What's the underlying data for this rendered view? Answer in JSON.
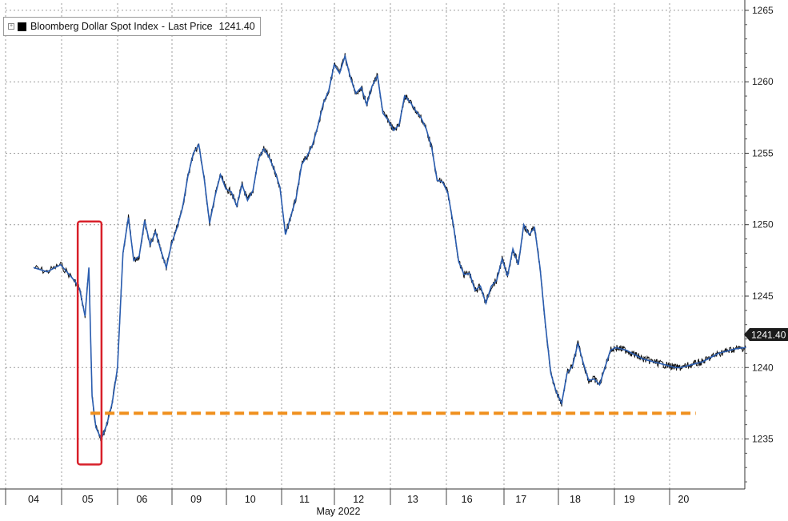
{
  "chart_data": {
    "type": "line",
    "legend": {
      "series_name": "Bloomberg Dollar Spot Index",
      "separator": "-",
      "label": "Last Price",
      "value": "1241.40",
      "placement": "top-left"
    },
    "last_price_tag": "1241.40",
    "x_tick_labels": [
      "04",
      "05",
      "06",
      "09",
      "10",
      "11",
      "12",
      "13",
      "16",
      "17",
      "18",
      "19",
      "20"
    ],
    "xlabel": "May 2022",
    "y_tick_labels": [
      "1235",
      "1240",
      "1245",
      "1250",
      "1255",
      "1260",
      "1265"
    ],
    "ylim": [
      1231.5,
      1265.5
    ],
    "grid": true,
    "series": [
      {
        "color": "#2a5db0",
        "x": [
          0,
          0.25,
          0.5,
          0.75,
          0.85,
          0.95,
          1.02,
          1.08,
          1.15,
          1.25,
          1.35,
          1.45,
          1.55,
          1.6,
          1.65,
          1.75,
          1.85,
          1.95,
          2.05,
          2.15,
          2.25,
          2.35,
          2.45,
          2.55,
          2.65,
          2.75,
          2.85,
          2.95,
          3.05,
          3.15,
          3.25,
          3.35,
          3.45,
          3.55,
          3.65,
          3.75,
          3.85,
          3.95,
          4.05,
          4.15,
          4.25,
          4.35,
          4.45,
          4.55,
          4.65,
          4.75,
          4.85,
          4.95,
          5.05,
          5.15,
          5.25,
          5.35,
          5.45,
          5.55,
          5.65,
          5.75,
          5.85,
          5.95,
          6.05,
          6.15,
          6.25,
          6.35,
          6.45,
          6.55,
          6.65,
          6.75,
          6.85,
          6.95,
          7.05,
          7.15,
          7.25,
          7.35,
          7.45,
          7.55,
          7.65,
          7.75,
          7.85,
          7.95,
          8.05,
          8.15,
          8.25,
          8.35,
          8.45,
          8.55,
          8.65,
          8.75,
          8.85,
          8.95,
          9.05,
          9.15,
          9.25,
          9.35,
          9.45,
          9.55,
          9.65,
          9.75,
          9.85,
          9.95,
          10.05,
          10.15,
          10.25,
          10.35,
          10.45,
          10.55,
          10.65,
          10.75,
          10.85,
          10.95,
          11.05,
          11.15,
          11.25,
          11.35,
          11.45,
          11.55,
          11.65,
          11.75,
          11.85,
          11.95,
          12.05,
          12.15,
          12.25,
          12.35,
          12.45,
          12.55,
          12.65,
          12.75,
          12.85,
          12.95,
          13.05,
          13.15
        ],
        "values": [
          1247.0,
          1246.7,
          1247.2,
          1246.1,
          1245.5,
          1243.6,
          1247.0,
          1238.0,
          1235.8,
          1235.0,
          1236.0,
          1237.5,
          1240.0,
          1244.0,
          1248.0,
          1250.5,
          1247.5,
          1247.8,
          1250.3,
          1248.6,
          1249.5,
          1248.2,
          1247.0,
          1248.7,
          1249.8,
          1251.2,
          1253.4,
          1255.0,
          1255.6,
          1253.2,
          1250.1,
          1252.0,
          1253.5,
          1252.5,
          1252.3,
          1251.3,
          1252.8,
          1251.7,
          1252.4,
          1254.6,
          1255.3,
          1254.7,
          1253.8,
          1252.6,
          1249.3,
          1250.6,
          1251.9,
          1254.2,
          1254.8,
          1255.6,
          1256.9,
          1258.5,
          1259.4,
          1261.2,
          1260.6,
          1261.8,
          1260.3,
          1259.2,
          1259.6,
          1258.4,
          1259.7,
          1260.4,
          1257.8,
          1257.3,
          1256.6,
          1257.0,
          1259.0,
          1258.6,
          1258.0,
          1257.5,
          1256.7,
          1255.4,
          1253.1,
          1253.0,
          1252.2,
          1250.0,
          1247.4,
          1246.5,
          1246.6,
          1245.4,
          1245.7,
          1244.5,
          1245.7,
          1246.1,
          1247.6,
          1246.4,
          1248.3,
          1247.2,
          1250.0,
          1249.3,
          1249.8,
          1247.0,
          1243.0,
          1239.6,
          1238.3,
          1237.5,
          1239.6,
          1240.1,
          1241.7,
          1240.3,
          1239.1,
          1239.2,
          1238.8,
          1240.0,
          1241.2,
          1241.4,
          1241.3,
          1241.2,
          1241.0,
          1240.8,
          1240.6,
          1240.5,
          1240.4,
          1240.3,
          1240.2,
          1240.1,
          1240.0,
          1240.0,
          1240.1,
          1240.2,
          1240.3,
          1240.4,
          1240.6,
          1240.8,
          1241.0,
          1241.1,
          1241.2,
          1241.3,
          1241.35,
          1241.4
        ]
      }
    ],
    "annotations": [
      {
        "type": "dashed-line",
        "color": "#f0901e",
        "y": 1236.8,
        "x_from": 1.08,
        "x_to": 12.05
      },
      {
        "type": "rectangle",
        "color": "#d8202a",
        "x_from": 0.8,
        "x_to": 1.18,
        "y_from": 1234.0,
        "y_to": 1250.0
      }
    ]
  }
}
